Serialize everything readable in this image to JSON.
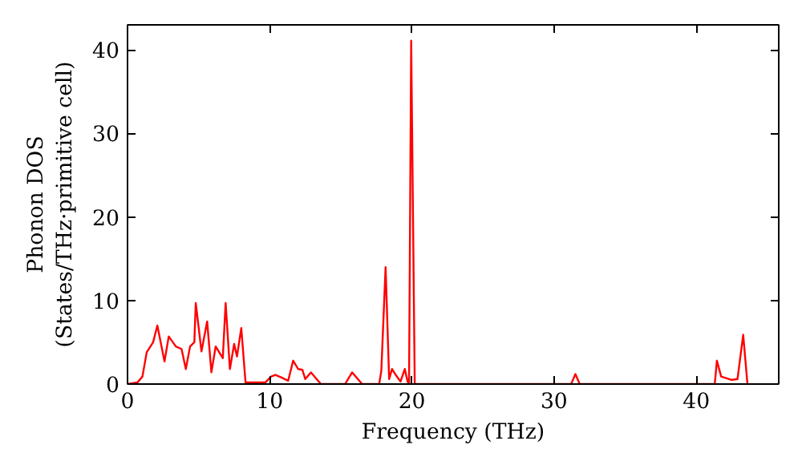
{
  "chart_data": {
    "type": "line",
    "xlabel": "Frequency (THz)",
    "ylabel": "Phonon DOS\n(States/THz·primitive cell)",
    "x": [
      0,
      0.7,
      1.05,
      1.35,
      1.8,
      2.1,
      2.6,
      2.9,
      3.4,
      3.8,
      4.1,
      4.4,
      4.7,
      4.8,
      5.2,
      5.6,
      5.9,
      6.2,
      6.7,
      6.9,
      7.2,
      7.5,
      7.7,
      8.0,
      8.3,
      9.7,
      10.1,
      10.4,
      10.8,
      11.3,
      11.65,
      12.0,
      12.3,
      12.5,
      12.9,
      13.3,
      13.6,
      15.3,
      15.8,
      16.5,
      17.7,
      17.85,
      18.15,
      18.4,
      18.6,
      18.9,
      19.2,
      19.5,
      19.7,
      19.8,
      19.95,
      20.2,
      31.2,
      31.5,
      31.8,
      41.3,
      41.45,
      41.75,
      42.5,
      42.9,
      43.3,
      43.6
    ],
    "series": [
      {
        "color": "#ff0000",
        "values": [
          0,
          0.2,
          0.9,
          3.8,
          5.0,
          7.0,
          2.7,
          5.7,
          4.5,
          4.2,
          1.8,
          4.5,
          5.0,
          9.7,
          3.9,
          7.5,
          1.4,
          4.5,
          3.1,
          9.7,
          1.8,
          4.8,
          3.3,
          6.7,
          0.2,
          0.2,
          0.9,
          1.1,
          0.8,
          0.4,
          2.8,
          1.8,
          1.7,
          0.6,
          1.4,
          0.6,
          0,
          0,
          1.4,
          0,
          0,
          1.6,
          14.0,
          0.6,
          1.8,
          1.0,
          0.3,
          1.8,
          0.3,
          0,
          41.1,
          0,
          0,
          1.2,
          0,
          0,
          2.8,
          0.9,
          0.5,
          0.6,
          5.9,
          0
        ]
      }
    ],
    "xlim": [
      0,
      45.8
    ],
    "ylim": [
      0,
      43
    ],
    "xticks": [
      0,
      10,
      20,
      30,
      40
    ],
    "yticks": [
      0,
      10,
      20,
      30,
      40
    ],
    "grid": false
  }
}
